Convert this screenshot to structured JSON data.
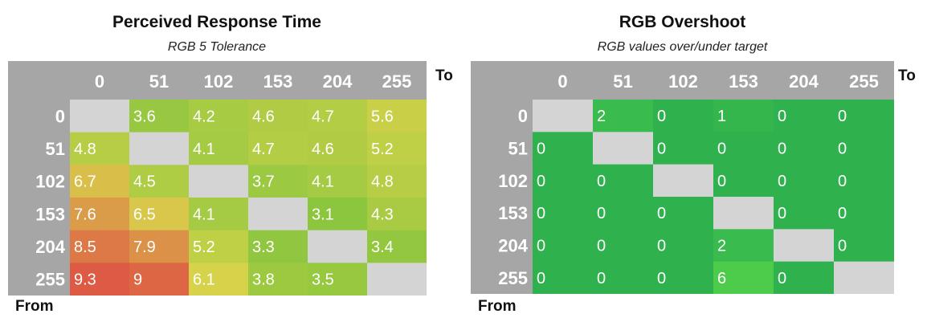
{
  "chart_data": [
    {
      "type": "heatmap",
      "title": "Perceived Response Time",
      "subtitle": "RGB 5 Tolerance",
      "to_label": "To",
      "from_label": "From",
      "columns": [
        "0",
        "51",
        "102",
        "153",
        "204",
        "255"
      ],
      "rows": [
        "0",
        "51",
        "102",
        "153",
        "204",
        "255"
      ],
      "values": [
        [
          null,
          3.6,
          4.2,
          4.6,
          4.7,
          5.6
        ],
        [
          4.8,
          null,
          4.1,
          4.7,
          4.6,
          5.2
        ],
        [
          6.7,
          4.5,
          null,
          3.7,
          4.1,
          4.8
        ],
        [
          7.6,
          6.5,
          4.1,
          null,
          3.1,
          4.3
        ],
        [
          8.5,
          7.9,
          5.2,
          3.3,
          null,
          3.4
        ],
        [
          9.3,
          9,
          6.1,
          3.8,
          3.5,
          null
        ]
      ],
      "color_scale": {
        "low": "#8cc63f",
        "mid": "#d8d34a",
        "high": "#dd5a45"
      },
      "empty_color": "#d4d4d4",
      "header_color": "#a6a6a6"
    },
    {
      "type": "heatmap",
      "title": "RGB Overshoot",
      "subtitle": "RGB values over/under target",
      "to_label": "To",
      "from_label": "From",
      "columns": [
        "0",
        "51",
        "102",
        "153",
        "204",
        "255"
      ],
      "rows": [
        "0",
        "51",
        "102",
        "153",
        "204",
        "255"
      ],
      "values": [
        [
          null,
          2,
          0,
          1,
          0,
          0
        ],
        [
          0,
          null,
          0,
          0,
          0,
          0
        ],
        [
          0,
          0,
          null,
          0,
          0,
          0
        ],
        [
          0,
          0,
          0,
          null,
          0,
          0
        ],
        [
          0,
          0,
          0,
          2,
          null,
          0
        ],
        [
          0,
          0,
          0,
          6,
          0,
          null
        ]
      ],
      "color_scale": {
        "low": "#2fb24e",
        "high": "#4ccc4a"
      },
      "empty_color": "#d4d4d4",
      "header_color": "#a6a6a6"
    }
  ]
}
